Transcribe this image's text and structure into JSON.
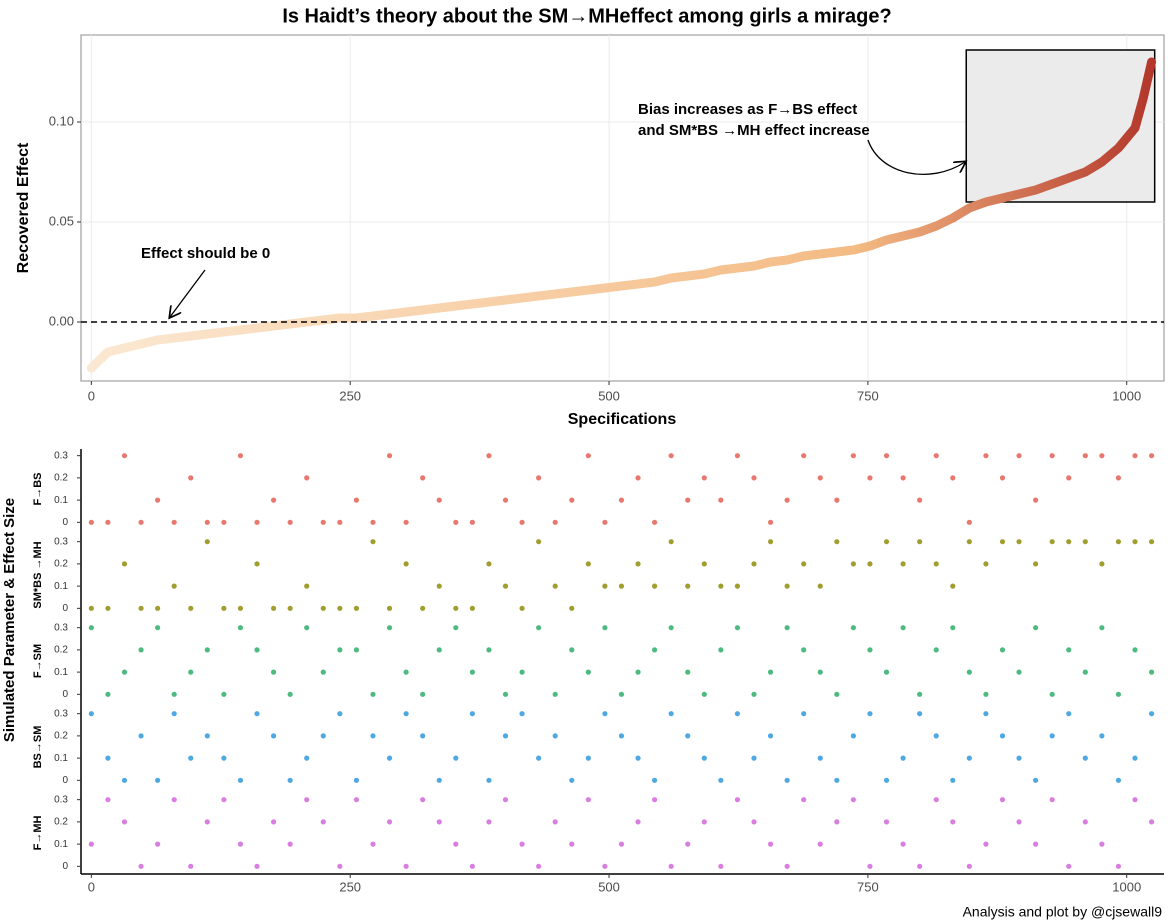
{
  "chart_data": [
    {
      "type": "curve",
      "title": "Is Haidt’s   theory about the SM→MHeffect among girls a mirage?",
      "x_label": "Specifications",
      "y_label": "Recovered Effect",
      "x": [
        0,
        16,
        32,
        48,
        64,
        80,
        96,
        112,
        128,
        144,
        160,
        176,
        192,
        208,
        224,
        240,
        256,
        272,
        288,
        304,
        320,
        336,
        352,
        368,
        384,
        400,
        416,
        432,
        448,
        464,
        480,
        496,
        512,
        528,
        544,
        560,
        576,
        592,
        608,
        624,
        640,
        656,
        672,
        688,
        704,
        720,
        736,
        752,
        768,
        784,
        800,
        816,
        832,
        848,
        864,
        880,
        896,
        912,
        928,
        944,
        960,
        976,
        992,
        1008,
        1016,
        1024
      ],
      "values": [
        -0.023,
        -0.015,
        -0.013,
        -0.011,
        -0.009,
        -0.008,
        -0.007,
        -0.006,
        -0.005,
        -0.004,
        -0.003,
        -0.002,
        -0.001,
        0.0,
        0.001,
        0.002,
        0.002,
        0.003,
        0.004,
        0.005,
        0.006,
        0.007,
        0.008,
        0.009,
        0.01,
        0.011,
        0.012,
        0.013,
        0.014,
        0.015,
        0.016,
        0.017,
        0.018,
        0.019,
        0.02,
        0.022,
        0.023,
        0.024,
        0.026,
        0.027,
        0.028,
        0.03,
        0.031,
        0.033,
        0.034,
        0.035,
        0.036,
        0.038,
        0.041,
        0.043,
        0.045,
        0.048,
        0.052,
        0.057,
        0.06,
        0.062,
        0.064,
        0.066,
        0.069,
        0.072,
        0.075,
        0.08,
        0.087,
        0.097,
        0.112,
        0.13
      ],
      "colors": [
        "#fbe8d2",
        "#f4bb84",
        "#b3372b"
      ],
      "xlim": [
        -10,
        1036
      ],
      "xticks": [
        0,
        250,
        500,
        750,
        1000
      ],
      "ylim": [
        -0.0295,
        0.1435
      ],
      "yticks": [
        {
          "value": 0,
          "label": "0.00"
        },
        {
          "value": 0.05,
          "label": "0.05"
        },
        {
          "value": 0.1,
          "label": "0.10"
        }
      ],
      "grid": true,
      "reference_line": 0,
      "highlight": {
        "x": [
          845,
          1027
        ],
        "y": [
          0.06,
          0.136
        ]
      },
      "annotations": [
        "Effect should be 0",
        "Bias increases as F→BS effect",
        "and SM*BS →MH effect increase"
      ]
    },
    {
      "type": "strip",
      "y_label": "Simulated Parameter & Effect Size",
      "x": [
        0,
        16,
        32,
        48,
        64,
        80,
        96,
        112,
        128,
        144,
        160,
        176,
        192,
        208,
        224,
        240,
        256,
        272,
        288,
        304,
        320,
        336,
        352,
        368,
        384,
        400,
        416,
        432,
        448,
        464,
        480,
        496,
        512,
        528,
        544,
        560,
        576,
        592,
        608,
        624,
        640,
        656,
        672,
        688,
        704,
        720,
        736,
        752,
        768,
        784,
        800,
        816,
        832,
        848,
        864,
        880,
        896,
        912,
        928,
        944,
        960,
        976,
        992,
        1008,
        1024
      ],
      "xlim": [
        -10,
        1036
      ],
      "xticks": [
        0,
        250,
        500,
        750,
        1000
      ],
      "ylim": [
        -0.03,
        0.33
      ],
      "yticks": [
        0,
        0.1,
        0.2,
        0.3
      ],
      "series": [
        {
          "name": "F→BS",
          "color": "#e8786e",
          "values": [
            0,
            0,
            0.3,
            0,
            0.1,
            0,
            0.2,
            0,
            0,
            0.3,
            0,
            0.1,
            0,
            0.2,
            0,
            0,
            0.1,
            0,
            0.3,
            0,
            0.2,
            0.1,
            0,
            0,
            0.3,
            0.1,
            0,
            0.2,
            0,
            0.1,
            0.3,
            0,
            0.1,
            0.2,
            0,
            0.3,
            0.1,
            0.2,
            0.1,
            0.3,
            0.2,
            0,
            0.1,
            0.3,
            0.2,
            0.1,
            0.3,
            0.2,
            0.3,
            0.2,
            0.1,
            0.3,
            0.2,
            0,
            0.3,
            0.2,
            0.3,
            0.1,
            0.3,
            0.2,
            0.3,
            0.3,
            0.2,
            0.3,
            0.3
          ]
        },
        {
          "name": "SM*BS →MH",
          "color": "#a19e2f",
          "values": [
            0,
            0,
            0.2,
            0,
            0,
            0.1,
            0,
            0.3,
            0,
            0,
            0.2,
            0,
            0,
            0.1,
            0,
            0,
            0,
            0.3,
            0,
            0.2,
            0,
            0.1,
            0,
            0,
            0.2,
            0.1,
            0,
            0.3,
            0.1,
            0,
            0.2,
            0.1,
            0.1,
            0.2,
            0.1,
            0.3,
            0.1,
            0.2,
            0.1,
            0.1,
            0.2,
            0.3,
            0.1,
            0.2,
            0.1,
            0.3,
            0.2,
            0.2,
            0.3,
            0.2,
            0.3,
            0.2,
            0.1,
            0.3,
            0.2,
            0.3,
            0.3,
            0.2,
            0.3,
            0.3,
            0.3,
            0.2,
            0.3,
            0.3,
            0.3
          ]
        },
        {
          "name": "F→SM",
          "color": "#4dba80",
          "values": [
            0.3,
            0,
            0.1,
            0.2,
            0.3,
            0,
            0.1,
            0.2,
            0,
            0.3,
            0.2,
            0.1,
            0,
            0.3,
            0.1,
            0.2,
            0.2,
            0,
            0.3,
            0.1,
            0,
            0.2,
            0.3,
            0.1,
            0.2,
            0,
            0.1,
            0.3,
            0,
            0.2,
            0.1,
            0.3,
            0,
            0.1,
            0.2,
            0.3,
            0.1,
            0,
            0.2,
            0.3,
            0,
            0.1,
            0.3,
            0.2,
            0.1,
            0,
            0.3,
            0.2,
            0.1,
            0.3,
            0,
            0.2,
            0.3,
            0.1,
            0,
            0.2,
            0.1,
            0.3,
            0,
            0.2,
            0.1,
            0.3,
            0,
            0.2,
            0.1
          ]
        },
        {
          "name": "BS→SM",
          "color": "#4ea8e2",
          "values": [
            0.3,
            0.1,
            0,
            0.2,
            0,
            0.3,
            0.1,
            0.2,
            0.1,
            0,
            0.3,
            0.2,
            0,
            0.1,
            0.2,
            0.3,
            0,
            0.2,
            0.1,
            0.3,
            0.2,
            0,
            0.1,
            0.3,
            0,
            0.2,
            0.3,
            0.1,
            0.2,
            0,
            0.1,
            0.3,
            0.2,
            0.1,
            0,
            0.3,
            0.2,
            0.1,
            0,
            0.3,
            0.1,
            0.2,
            0,
            0.3,
            0.1,
            0,
            0.2,
            0.3,
            0,
            0.1,
            0.3,
            0.2,
            0,
            0.1,
            0.3,
            0.2,
            0.1,
            0,
            0.2,
            0.3,
            0.1,
            0.2,
            0,
            0.1,
            0.3
          ]
        },
        {
          "name": "F→MH",
          "color": "#d97ee0",
          "values": [
            0.1,
            0.3,
            0.2,
            0,
            0.1,
            0.3,
            0,
            0.2,
            0.3,
            0.1,
            0,
            0.2,
            0.1,
            0.3,
            0.2,
            0,
            0.3,
            0.1,
            0.2,
            0,
            0.3,
            0.2,
            0.1,
            0,
            0.2,
            0.3,
            0.1,
            0,
            0.2,
            0.1,
            0.3,
            0,
            0.1,
            0.2,
            0.3,
            0,
            0.1,
            0.2,
            0,
            0.3,
            0.2,
            0.1,
            0,
            0.3,
            0.1,
            0.2,
            0.3,
            0,
            0.2,
            0.1,
            0,
            0.3,
            0.2,
            0,
            0.1,
            0.3,
            0.2,
            0.1,
            0.3,
            0,
            0.2,
            0.1,
            0,
            0.3,
            0.2
          ]
        }
      ]
    },
    {
      "caption": "Analysis and plot by @cjsewall9"
    }
  ]
}
